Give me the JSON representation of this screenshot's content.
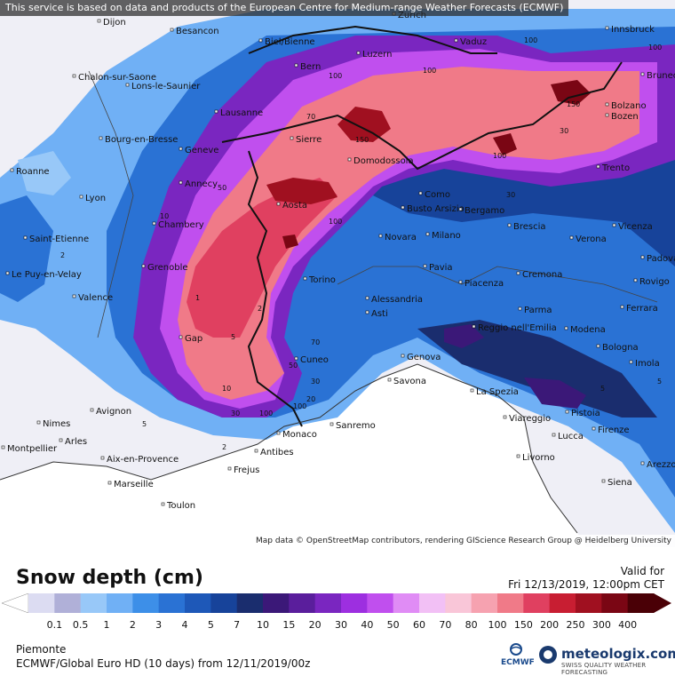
{
  "disclaimer": "This service is based on data and products of the European Centre for Medium-range Weather Forecasts (ECMWF)",
  "attribution": "Map data © OpenStreetMap contributors, rendering GIScience Research Group @ Heidelberg University",
  "title": "Snow depth (cm)",
  "valid_label": "Valid for",
  "valid_time": "Fri 12/13/2019, 12:00pm CET",
  "region": "Piemonte",
  "model_run": "ECMWF/Global Euro HD (10 days) from 12/11/2019/00z",
  "ecmwf_logo": "ECMWF",
  "brand": "meteologix.com",
  "brand_tagline": "SWISS QUALITY WEATHER FORECASTING",
  "legend": {
    "labels": [
      "0.1",
      "0.5",
      "1",
      "2",
      "3",
      "4",
      "5",
      "7",
      "10",
      "15",
      "20",
      "30",
      "40",
      "50",
      "60",
      "70",
      "80",
      "100",
      "150",
      "200",
      "250",
      "300",
      "400"
    ],
    "colors": [
      "#dcdcf2",
      "#b0b0d8",
      "#98c8f8",
      "#70b0f5",
      "#3d8fe8",
      "#2a72d4",
      "#1e58b8",
      "#17439a",
      "#1a2d6e",
      "#3b1878",
      "#5a1e9c",
      "#7a26c0",
      "#9d2fe0",
      "#c04fee",
      "#e08cf5",
      "#f2c0f5",
      "#f9c6d8",
      "#f6a2b0",
      "#f07a88",
      "#e04060",
      "#c81e32",
      "#a01020",
      "#7a0614",
      "#4a0006"
    ]
  },
  "cities": [
    {
      "name": "Dijon"
    },
    {
      "name": "Besancon"
    },
    {
      "name": "Biel/Bienne"
    },
    {
      "name": "Zurich"
    },
    {
      "name": "Vaduz"
    },
    {
      "name": "Innsbruck"
    },
    {
      "name": "Bern"
    },
    {
      "name": "Luzern"
    },
    {
      "name": "Chalon-sur-Saone"
    },
    {
      "name": "Lons-le-Saunier"
    },
    {
      "name": "Lausanne"
    },
    {
      "name": "Brunec"
    },
    {
      "name": "Sierre"
    },
    {
      "name": "Bolzano"
    },
    {
      "name": "Bozen"
    },
    {
      "name": "Bourg-en-Bresse"
    },
    {
      "name": "Geneve"
    },
    {
      "name": "Domodossola"
    },
    {
      "name": "Roanne"
    },
    {
      "name": "Annecy"
    },
    {
      "name": "Trento"
    },
    {
      "name": "Como"
    },
    {
      "name": "Lyon"
    },
    {
      "name": "Aosta"
    },
    {
      "name": "Busto Arsizio"
    },
    {
      "name": "Bergamo"
    },
    {
      "name": "Chambery"
    },
    {
      "name": "Saint-Etienne"
    },
    {
      "name": "Novara"
    },
    {
      "name": "Milano"
    },
    {
      "name": "Brescia"
    },
    {
      "name": "Verona"
    },
    {
      "name": "Vicenza"
    },
    {
      "name": "Padova"
    },
    {
      "name": "Grenoble"
    },
    {
      "name": "Pavia"
    },
    {
      "name": "Le Puy-en-Velay"
    },
    {
      "name": "Torino"
    },
    {
      "name": "Cremona"
    },
    {
      "name": "Piacenza"
    },
    {
      "name": "Rovigo"
    },
    {
      "name": "Valence"
    },
    {
      "name": "Alessandria"
    },
    {
      "name": "Asti"
    },
    {
      "name": "Parma"
    },
    {
      "name": "Ferrara"
    },
    {
      "name": "Reggio nell'Emilia"
    },
    {
      "name": "Modena"
    },
    {
      "name": "Gap"
    },
    {
      "name": "Bologna"
    },
    {
      "name": "Cuneo"
    },
    {
      "name": "Genova"
    },
    {
      "name": "Imola"
    },
    {
      "name": "Savona"
    },
    {
      "name": "La Spezia"
    },
    {
      "name": "Avignon"
    },
    {
      "name": "Pistoia"
    },
    {
      "name": "Nimes"
    },
    {
      "name": "Viareggio"
    },
    {
      "name": "Monaco"
    },
    {
      "name": "Sanremo"
    },
    {
      "name": "Lucca"
    },
    {
      "name": "Firenze"
    },
    {
      "name": "Arles"
    },
    {
      "name": "Antibes"
    },
    {
      "name": "Montpellier"
    },
    {
      "name": "Arezzo"
    },
    {
      "name": "Aix-en-Provence"
    },
    {
      "name": "Livorno"
    },
    {
      "name": "Frejus"
    },
    {
      "name": "Siena"
    },
    {
      "name": "Marseille"
    },
    {
      "name": "Toulon"
    }
  ],
  "contour_labels": [
    "100",
    "100",
    "100",
    "100",
    "70",
    "150",
    "150",
    "100",
    "50",
    "100",
    "30",
    "70",
    "50",
    "30",
    "20",
    "100",
    "100",
    "30",
    "10",
    "5",
    "5",
    "2",
    "2",
    "1",
    "2",
    "30",
    "10",
    "5",
    "5"
  ]
}
